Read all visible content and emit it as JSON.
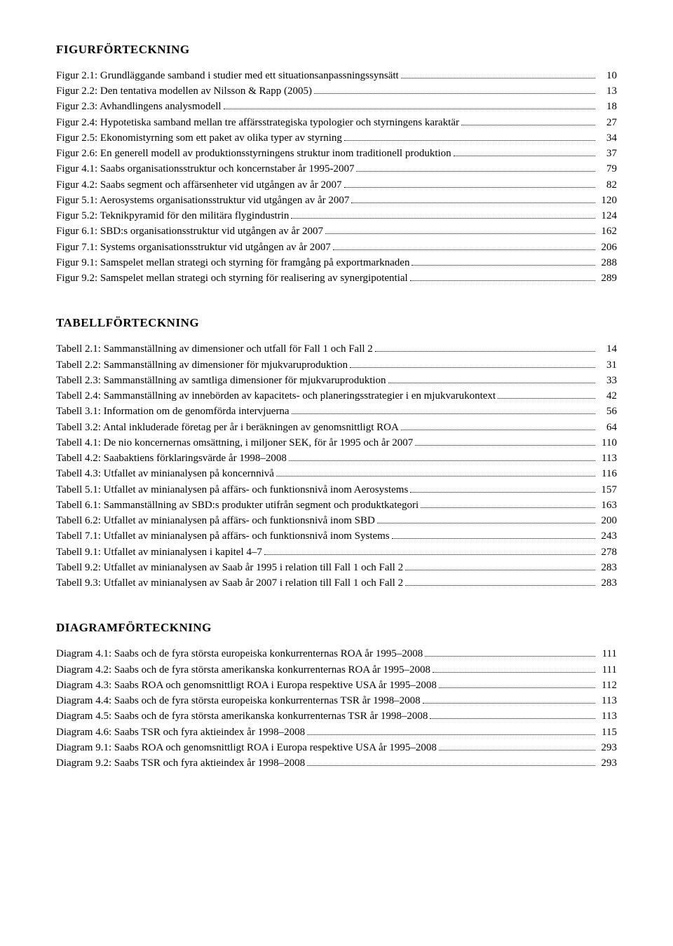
{
  "sections": [
    {
      "title": "FIGURFÖRTECKNING",
      "entries": [
        {
          "label": "Figur 2.1: Grundläggande samband i studier med ett situationsanpassningssynsätt",
          "page": "10"
        },
        {
          "label": "Figur 2.2: Den tentativa modellen av Nilsson & Rapp (2005)",
          "page": "13"
        },
        {
          "label": "Figur 2.3: Avhandlingens analysmodell",
          "page": "18"
        },
        {
          "label": "Figur 2.4: Hypotetiska samband mellan tre affärsstrategiska typologier och styrningens karaktär",
          "page": "27"
        },
        {
          "label": "Figur 2.5: Ekonomistyrning som ett paket av olika typer av styrning",
          "page": "34"
        },
        {
          "label": "Figur 2.6: En generell modell av produktionsstyrningens struktur inom traditionell produktion",
          "page": "37"
        },
        {
          "label": "Figur 4.1: Saabs organisationsstruktur och koncernstaber år 1995-2007",
          "page": "79"
        },
        {
          "label": "Figur 4.2: Saabs segment och affärsenheter vid utgången av år 2007",
          "page": "82"
        },
        {
          "label": "Figur 5.1: Aerosystems organisationsstruktur vid utgången av år 2007",
          "page": "120"
        },
        {
          "label": "Figur 5.2: Teknikpyramid för den militära flygindustrin",
          "page": "124"
        },
        {
          "label": "Figur 6.1: SBD:s organisationsstruktur vid utgången av år 2007",
          "page": "162"
        },
        {
          "label": "Figur 7.1: Systems organisationsstruktur vid utgången av år 2007",
          "page": "206"
        },
        {
          "label": "Figur 9.1: Samspelet mellan strategi och styrning för framgång på exportmarknaden",
          "page": "288"
        },
        {
          "label": "Figur 9.2: Samspelet mellan strategi och styrning för realisering av synergipotential",
          "page": "289"
        }
      ]
    },
    {
      "title": "TABELLFÖRTECKNING",
      "entries": [
        {
          "label": "Tabell 2.1: Sammanställning av dimensioner och utfall för Fall 1 och Fall 2",
          "page": "14"
        },
        {
          "label": "Tabell 2.2: Sammanställning av dimensioner för mjukvaruproduktion",
          "page": "31"
        },
        {
          "label": "Tabell 2.3: Sammanställning av samtliga dimensioner för mjukvaruproduktion",
          "page": "33"
        },
        {
          "label": "Tabell 2.4: Sammanställning av innebörden av kapacitets- och planeringsstrategier i en mjukvarukontext",
          "page": "42"
        },
        {
          "label": "Tabell 3.1: Information om de genomförda intervjuerna",
          "page": "56"
        },
        {
          "label": "Tabell 3.2: Antal inkluderade företag per år i beräkningen av genomsnittligt ROA",
          "page": "64"
        },
        {
          "label": "Tabell 4.1: De nio koncernernas omsättning, i miljoner SEK, för år 1995 och år 2007",
          "page": "110"
        },
        {
          "label": "Tabell 4.2: Saabaktiens förklaringsvärde år 1998–2008",
          "page": "113"
        },
        {
          "label": "Tabell 4.3: Utfallet av minianalysen på koncernnivå",
          "page": "116"
        },
        {
          "label": "Tabell 5.1: Utfallet av minianalysen på affärs- och funktionsnivå inom Aerosystems",
          "page": "157"
        },
        {
          "label": "Tabell 6.1: Sammanställning av SBD:s produkter utifrån segment och produktkategori",
          "page": "163"
        },
        {
          "label": "Tabell 6.2: Utfallet av minianalysen på affärs- och funktionsnivå inom SBD",
          "page": "200"
        },
        {
          "label": "Tabell 7.1: Utfallet av minianalysen på affärs- och funktionsnivå inom Systems",
          "page": "243"
        },
        {
          "label": "Tabell 9.1: Utfallet av minianalysen i kapitel 4–7",
          "page": "278"
        },
        {
          "label": "Tabell 9.2: Utfallet av minianalysen av Saab år 1995 i relation till Fall 1 och Fall 2",
          "page": "283"
        },
        {
          "label": "Tabell 9.3: Utfallet av minianalysen av Saab år 2007 i relation till Fall 1 och Fall 2",
          "page": "283"
        }
      ]
    },
    {
      "title": "DIAGRAMFÖRTECKNING",
      "entries": [
        {
          "label": "Diagram 4.1: Saabs och de fyra största europeiska konkurrenternas ROA år 1995–2008",
          "page": "111"
        },
        {
          "label": "Diagram 4.2: Saabs och de fyra största amerikanska konkurrenternas ROA år 1995–2008",
          "page": "111"
        },
        {
          "label": "Diagram 4.3: Saabs ROA och genomsnittligt ROA i Europa respektive USA år 1995–2008",
          "page": "112"
        },
        {
          "label": "Diagram 4.4: Saabs och de fyra största europeiska konkurrenternas TSR år 1998–2008",
          "page": "113"
        },
        {
          "label": "Diagram 4.5: Saabs och de fyra största amerikanska konkurrenternas TSR år 1998–2008",
          "page": "113"
        },
        {
          "label": "Diagram 4.6: Saabs TSR och fyra aktieindex år 1998–2008",
          "page": "115"
        },
        {
          "label": "Diagram 9.1: Saabs ROA och genomsnittligt ROA i Europa respektive USA år 1995–2008",
          "page": "293"
        },
        {
          "label": "Diagram 9.2: Saabs TSR och fyra aktieindex år 1998–2008",
          "page": "293"
        }
      ]
    }
  ]
}
